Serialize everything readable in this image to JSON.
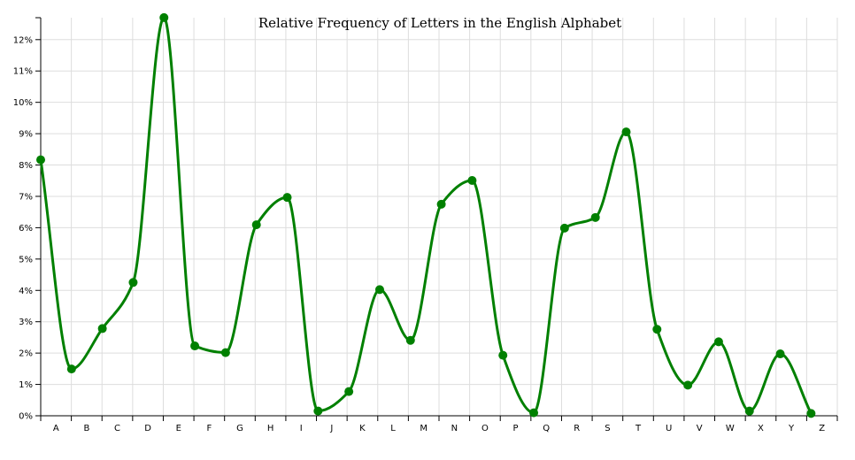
{
  "chart_data": {
    "type": "line",
    "title": "Relative Frequency of Letters in the English Alphabet",
    "xlabel": "",
    "ylabel": "",
    "categories": [
      "A",
      "B",
      "C",
      "D",
      "E",
      "F",
      "G",
      "H",
      "I",
      "J",
      "K",
      "L",
      "M",
      "N",
      "O",
      "P",
      "Q",
      "R",
      "S",
      "T",
      "U",
      "V",
      "W",
      "X",
      "Y",
      "Z"
    ],
    "series": [
      {
        "values": [
          8.167,
          1.492,
          2.782,
          4.253,
          12.702,
          2.228,
          2.015,
          6.094,
          6.966,
          0.153,
          0.772,
          4.025,
          2.406,
          6.749,
          7.507,
          1.929,
          0.095,
          5.987,
          6.327,
          9.056,
          2.758,
          0.978,
          2.36,
          0.15,
          1.974,
          0.074
        ]
      }
    ],
    "ylim": [
      0,
      12.7
    ],
    "y_ticks": [
      "0%",
      "1%",
      "2%",
      "3%",
      "4%",
      "5%",
      "6%",
      "7%",
      "8%",
      "9%",
      "10%",
      "11%",
      "12%"
    ],
    "grid": true,
    "line_color": "#008000",
    "curve": "smooth"
  }
}
